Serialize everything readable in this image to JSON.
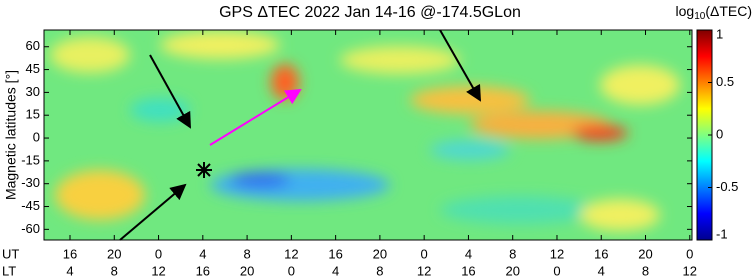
{
  "chart_data": {
    "type": "heatmap",
    "title": "GPS ΔTEC 2022 Jan 14-16 @-174.5GLon",
    "y_label": "Magnetic latitudes [°]",
    "ylim": [
      -67,
      71
    ],
    "yticks": [
      60,
      45,
      30,
      15,
      0,
      -15,
      -30,
      -45,
      -60
    ],
    "xlim": [
      -2.35,
      56.2
    ],
    "x_row_labels": [
      "UT",
      "LT"
    ],
    "xticks": [
      {
        "value": 0,
        "label": "16"
      },
      {
        "value": 4,
        "label": "20"
      },
      {
        "value": 8,
        "label": "0"
      },
      {
        "value": 12,
        "label": "4"
      },
      {
        "value": 16,
        "label": "8"
      },
      {
        "value": 20,
        "label": "12"
      },
      {
        "value": 24,
        "label": "16"
      },
      {
        "value": 28,
        "label": "20"
      },
      {
        "value": 32,
        "label": "0"
      },
      {
        "value": 36,
        "label": "4"
      },
      {
        "value": 40,
        "label": "8"
      },
      {
        "value": 44,
        "label": "12"
      },
      {
        "value": 48,
        "label": "16"
      },
      {
        "value": 52,
        "label": "20"
      },
      {
        "value": 56,
        "label": "0"
      }
    ],
    "lt_tick_labels": [
      "4",
      "8",
      "12",
      "16",
      "20",
      "0",
      "4",
      "8",
      "12",
      "16",
      "20",
      "0",
      "4",
      "8",
      "12"
    ],
    "colorbar_label": {
      "base": "log",
      "subscript": "10",
      "argument": "(ΔTEC)"
    },
    "clim": [
      -1,
      1
    ],
    "cticks": [
      1,
      0.5,
      0,
      -0.5,
      -1
    ],
    "colormap": "jet"
  }
}
